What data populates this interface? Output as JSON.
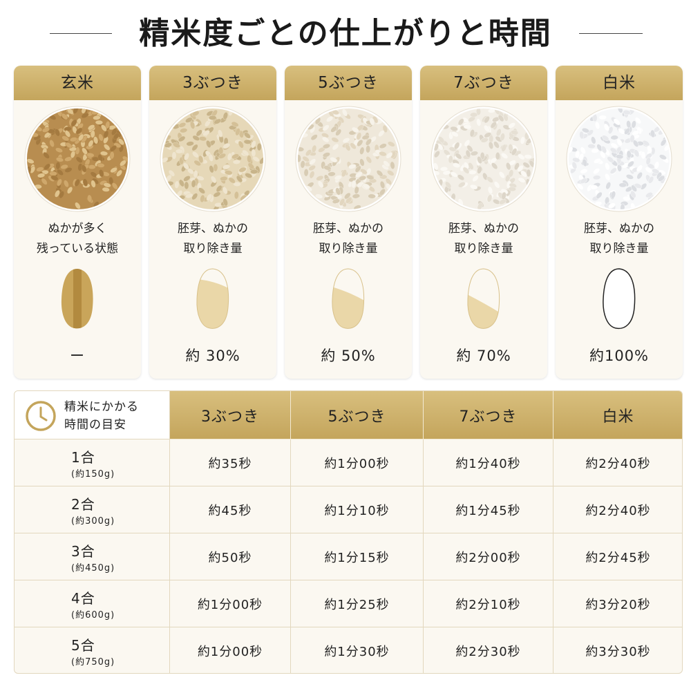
{
  "title": "精米度ごとの仕上がりと時間",
  "cards": [
    {
      "label": "玄米",
      "description": [
        "ぬかが多く",
        "残っている状態"
      ],
      "ratio": "ー"
    },
    {
      "label": "3ぶつき",
      "description": [
        "胚芽、ぬかの",
        "取り除き量"
      ],
      "ratio": "約 30%"
    },
    {
      "label": "5ぶつき",
      "description": [
        "胚芽、ぬかの",
        "取り除き量"
      ],
      "ratio": "約 50%"
    },
    {
      "label": "7ぶつき",
      "description": [
        "胚芽、ぬかの",
        "取り除き量"
      ],
      "ratio": "約 70%"
    },
    {
      "label": "白米",
      "description": [
        "胚芽、ぬかの",
        "取り除き量"
      ],
      "ratio": "約100%"
    }
  ],
  "table": {
    "corner": [
      "精米にかかる",
      "時間の目安"
    ],
    "columns": [
      "3ぶつき",
      "5ぶつき",
      "7ぶつき",
      "白米"
    ],
    "rows": [
      {
        "amount": "1合",
        "weight": "(約150g)",
        "times": [
          "約35秒",
          "約1分00秒",
          "約1分40秒",
          "約2分40秒"
        ]
      },
      {
        "amount": "2合",
        "weight": "(約300g)",
        "times": [
          "約45秒",
          "約1分10秒",
          "約1分45秒",
          "約2分40秒"
        ]
      },
      {
        "amount": "3合",
        "weight": "(約450g)",
        "times": [
          "約50秒",
          "約1分15秒",
          "約2分00秒",
          "約2分45秒"
        ]
      },
      {
        "amount": "4合",
        "weight": "(約600g)",
        "times": [
          "約1分00秒",
          "約1分25秒",
          "約2分10秒",
          "約3分20秒"
        ]
      },
      {
        "amount": "5合",
        "weight": "(約750g)",
        "times": [
          "約1分00秒",
          "約1分30秒",
          "約2分30秒",
          "約3分30秒"
        ]
      }
    ]
  }
}
